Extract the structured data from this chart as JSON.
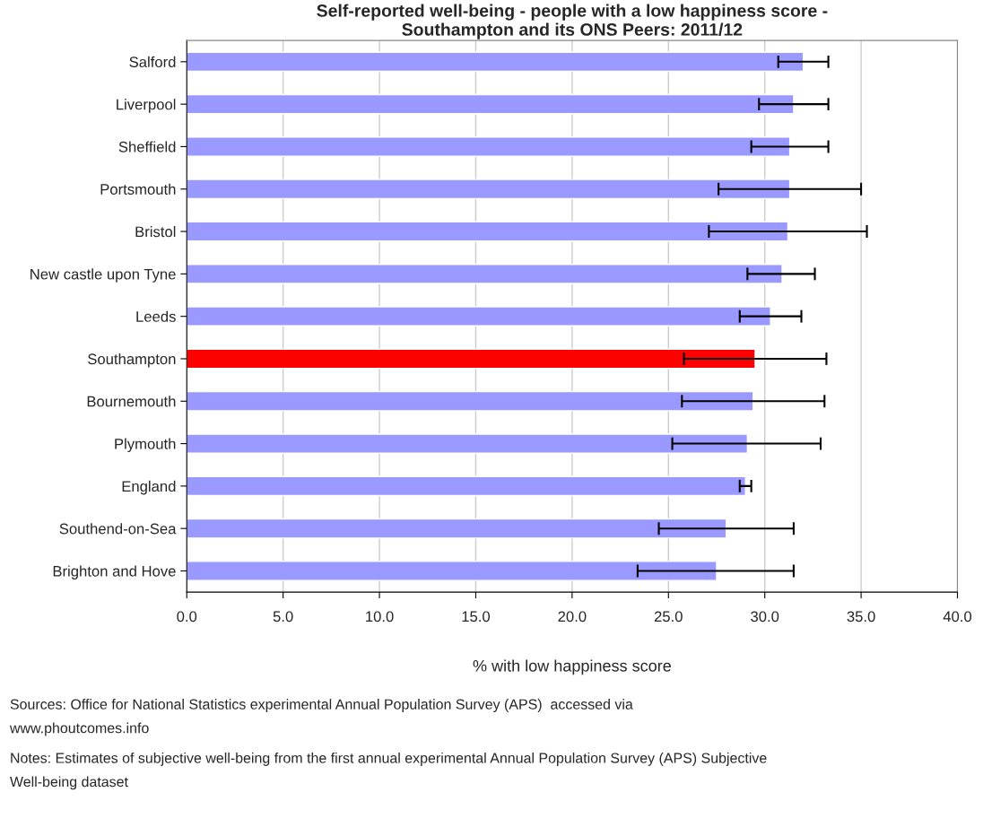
{
  "chart_data": {
    "type": "bar",
    "orientation": "horizontal",
    "title": "Self-reported well-being - people with a low happiness score -\nSouthampton and its ONS Peers: 2011/12",
    "xlabel": "% with low happiness score",
    "categories": [
      "Salford",
      "Liverpool",
      "Sheffield",
      "Portsmouth",
      "Bristol",
      "New castle upon Tyne",
      "Leeds",
      "Southampton",
      "Bournemouth",
      "Plymouth",
      "England",
      "Southend-on-Sea",
      "Brighton and Hove"
    ],
    "values": [
      32.0,
      31.5,
      31.3,
      31.3,
      31.2,
      30.9,
      30.3,
      29.5,
      29.4,
      29.1,
      29.0,
      28.0,
      27.5
    ],
    "errors": [
      [
        30.7,
        33.3
      ],
      [
        29.7,
        33.3
      ],
      [
        29.3,
        33.3
      ],
      [
        27.6,
        35.0
      ],
      [
        27.1,
        35.3
      ],
      [
        29.1,
        32.6
      ],
      [
        28.7,
        31.9
      ],
      [
        25.8,
        33.2
      ],
      [
        25.7,
        33.1
      ],
      [
        25.2,
        32.9
      ],
      [
        28.7,
        29.3
      ],
      [
        24.5,
        31.5
      ],
      [
        23.4,
        31.5
      ]
    ],
    "colors": [
      "#9999ff",
      "#9999ff",
      "#9999ff",
      "#9999ff",
      "#9999ff",
      "#9999ff",
      "#9999ff",
      "#ff0000",
      "#9999ff",
      "#9999ff",
      "#9999ff",
      "#9999ff",
      "#9999ff"
    ],
    "xlim": [
      0,
      40
    ],
    "xticks": [
      {
        "value": 0,
        "label": "0.0"
      },
      {
        "value": 5,
        "label": "5.0"
      },
      {
        "value": 10,
        "label": "10.0"
      },
      {
        "value": 15,
        "label": "15.0"
      },
      {
        "value": 20,
        "label": "20.0"
      },
      {
        "value": 25,
        "label": "25.0"
      },
      {
        "value": 30,
        "label": "30.0"
      },
      {
        "value": 35,
        "label": "35.0"
      },
      {
        "value": 40,
        "label": "40.0"
      }
    ],
    "grid": "x",
    "annotations": [
      "Sources: Office for National Statistics experimental Annual Population Survey (APS)  accessed via\nwww.phoutcomes.info",
      "Notes: Estimates of subjective well-being from the first annual experimental Annual Population Survey (APS) Subjective\nWell-being dataset"
    ]
  }
}
